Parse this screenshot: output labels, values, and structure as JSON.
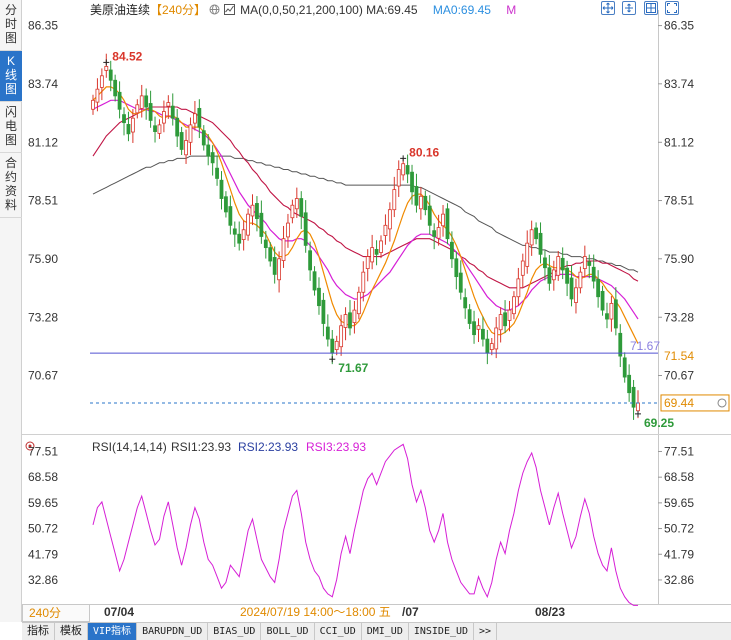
{
  "side_tabs": [
    {
      "label": "分时图",
      "active": false
    },
    {
      "label": "K线图",
      "active": true
    },
    {
      "label": "闪电图",
      "active": false
    },
    {
      "label": "合约资料",
      "active": false
    }
  ],
  "header": {
    "title": "美原油连续",
    "period": "【240分】",
    "ma_label": "MA(0,0,50,21,200,100)",
    "ma_value": "MA:69.45",
    "ma2_value": "MA0:69.45",
    "m_label": "M"
  },
  "rsi_header": {
    "label": "RSI(14,14,14)",
    "rsi1": "RSI1:23.93",
    "rsi2": "RSI2:23.93",
    "rsi3": "RSI3:23.93"
  },
  "footer": {
    "period": "240分",
    "date_left": "07/04",
    "date_cursor": "2024/07/19 14:00～18:00 五",
    "date_cursor_suffix": "/07",
    "date_right": "08/23"
  },
  "bottom_tabs": [
    "指标",
    "模板",
    "VIP指标",
    "BARUPDN_UD",
    "BIAS_UD",
    "BOLL_UD",
    "CCI_UD",
    "DMI_UD",
    "INSIDE_UD",
    ">>"
  ],
  "colors": {
    "up": "#d9362b",
    "down": "#2e9a3a",
    "ma_fast": "#f08a00",
    "ma_mid": "#d61fd6",
    "ma_slow": "#c01545",
    "ma_long": "#555555",
    "rsi": "#d61fd6",
    "support": "#5050d0"
  },
  "chart_data": {
    "type": "candlestick",
    "y_axis_ticks": [
      "86.35",
      "83.74",
      "81.12",
      "78.51",
      "75.90",
      "73.28",
      "70.67"
    ],
    "ylim": [
      68.9,
      86.6
    ],
    "annotations": {
      "high1": "84.52",
      "high2": "80.16",
      "low1": "71.67",
      "low2": "69.25"
    },
    "support_level": 71.67,
    "support_label": "71.67",
    "tags": [
      {
        "value": 71.54,
        "label": "71.54"
      },
      {
        "value": 69.44,
        "label": "69.44"
      }
    ],
    "close_level": 69.44,
    "close_points": [
      83.0,
      83.5,
      84.1,
      84.52,
      83.9,
      83.2,
      82.6,
      82.0,
      81.5,
      82.2,
      82.8,
      83.2,
      82.7,
      82.1,
      81.6,
      81.9,
      82.5,
      82.9,
      82.2,
      81.4,
      80.8,
      81.2,
      81.9,
      82.4,
      81.8,
      81.0,
      80.5,
      80.2,
      79.5,
      78.6,
      78.0,
      77.4,
      77.0,
      76.6,
      77.2,
      77.9,
      78.3,
      77.7,
      76.9,
      76.4,
      75.8,
      75.2,
      75.9,
      76.8,
      77.5,
      78.3,
      78.6,
      77.8,
      76.5,
      75.4,
      74.5,
      73.8,
      73.0,
      72.3,
      71.67,
      72.2,
      72.9,
      73.4,
      72.8,
      73.6,
      74.4,
      75.3,
      76.0,
      76.4,
      76.1,
      76.7,
      77.4,
      78.1,
      79.0,
      79.9,
      80.16,
      79.7,
      78.9,
      78.3,
      78.7,
      78.1,
      77.4,
      76.9,
      77.3,
      77.9,
      76.8,
      75.9,
      75.1,
      74.4,
      73.7,
      73.0,
      72.5,
      72.9,
      72.3,
      71.67,
      72.1,
      72.8,
      73.4,
      72.9,
      73.6,
      74.2,
      75.0,
      75.8,
      76.6,
      77.2,
      76.8,
      76.1,
      75.5,
      74.8,
      75.4,
      76.0,
      75.4,
      74.8,
      74.1,
      74.6,
      75.3,
      76.0,
      75.6,
      74.9,
      74.2,
      73.6,
      73.2,
      73.9,
      72.8,
      71.54,
      70.6,
      69.9,
      69.25,
      69.44
    ],
    "ma_fast": [
      83.0,
      83.2,
      83.4,
      83.6,
      83.6,
      83.5,
      83.3,
      83.0,
      82.6,
      82.4,
      82.4,
      82.5,
      82.6,
      82.6,
      82.5,
      82.3,
      82.2,
      82.3,
      82.3,
      82.2,
      82.0,
      81.8,
      81.8,
      81.8,
      81.8,
      81.6,
      81.4,
      81.1,
      80.7,
      80.2,
      79.6,
      79.0,
      78.4,
      77.9,
      77.6,
      77.5,
      77.5,
      77.4,
      77.2,
      77.0,
      76.6,
      76.2,
      76.0,
      76.0,
      76.1,
      76.4,
      76.8,
      77.1,
      77.2,
      77.0,
      76.6,
      76.0,
      75.3,
      74.6,
      73.9,
      73.4,
      73.1,
      73.0,
      72.9,
      72.9,
      73.1,
      73.5,
      74.0,
      74.5,
      74.9,
      75.3,
      75.7,
      76.2,
      76.7,
      77.3,
      77.9,
      78.4,
      78.7,
      78.8,
      78.8,
      78.6,
      78.3,
      77.9,
      77.6,
      77.4,
      77.2,
      76.9,
      76.5,
      76.0,
      75.4,
      74.8,
      74.2,
      73.7,
      73.3,
      72.9,
      72.6,
      72.5,
      72.5,
      72.6,
      72.8,
      73.0,
      73.4,
      73.9,
      74.4,
      75.0,
      75.4,
      75.6,
      75.7,
      75.6,
      75.5,
      75.5,
      75.5,
      75.4,
      75.3,
      75.1,
      75.0,
      75.1,
      75.2,
      75.2,
      75.0,
      74.8,
      74.5,
      74.3,
      74.0,
      73.7,
      73.3,
      72.9,
      72.5,
      72.1
    ],
    "ma_mid": [
      82.6,
      82.7,
      82.8,
      82.9,
      83.0,
      83.0,
      83.0,
      82.9,
      82.8,
      82.7,
      82.6,
      82.6,
      82.6,
      82.5,
      82.5,
      82.4,
      82.3,
      82.3,
      82.2,
      82.1,
      82.0,
      81.9,
      81.8,
      81.7,
      81.6,
      81.5,
      81.3,
      81.1,
      80.8,
      80.5,
      80.1,
      79.7,
      79.3,
      78.9,
      78.6,
      78.3,
      78.1,
      77.9,
      77.7,
      77.5,
      77.2,
      77.0,
      76.8,
      76.7,
      76.7,
      76.7,
      76.8,
      76.8,
      76.7,
      76.5,
      76.3,
      76.0,
      75.7,
      75.4,
      75.0,
      74.7,
      74.5,
      74.3,
      74.2,
      74.1,
      74.1,
      74.2,
      74.3,
      74.5,
      74.7,
      74.9,
      75.1,
      75.3,
      75.6,
      75.9,
      76.2,
      76.5,
      76.7,
      76.9,
      77.0,
      77.0,
      77.0,
      76.9,
      76.8,
      76.7,
      76.6,
      76.4,
      76.2,
      76.0,
      75.7,
      75.4,
      75.1,
      74.8,
      74.5,
      74.2,
      74.0,
      73.8,
      73.7,
      73.6,
      73.6,
      73.7,
      73.8,
      74.0,
      74.2,
      74.5,
      74.7,
      74.9,
      75.0,
      75.1,
      75.1,
      75.2,
      75.2,
      75.2,
      75.2,
      75.1,
      75.1,
      75.1,
      75.1,
      75.1,
      75.0,
      74.9,
      74.8,
      74.7,
      74.5,
      74.3,
      74.1,
      73.8,
      73.5,
      73.2
    ],
    "ma_slow": [
      80.5,
      80.8,
      81.1,
      81.4,
      81.6,
      81.8,
      82.0,
      82.1,
      82.2,
      82.3,
      82.4,
      82.5,
      82.6,
      82.7,
      82.7,
      82.7,
      82.7,
      82.7,
      82.7,
      82.7,
      82.6,
      82.6,
      82.5,
      82.4,
      82.3,
      82.2,
      82.1,
      82.0,
      81.8,
      81.6,
      81.4,
      81.2,
      80.9,
      80.7,
      80.4,
      80.2,
      79.9,
      79.7,
      79.4,
      79.2,
      78.9,
      78.7,
      78.5,
      78.3,
      78.2,
      78.0,
      77.9,
      77.8,
      77.7,
      77.6,
      77.5,
      77.3,
      77.2,
      77.0,
      76.9,
      76.7,
      76.6,
      76.4,
      76.3,
      76.2,
      76.1,
      76.0,
      76.0,
      76.0,
      76.0,
      76.0,
      76.1,
      76.2,
      76.3,
      76.4,
      76.5,
      76.6,
      76.7,
      76.8,
      76.8,
      76.8,
      76.8,
      76.7,
      76.6,
      76.5,
      76.4,
      76.3,
      76.2,
      76.0,
      75.9,
      75.7,
      75.6,
      75.4,
      75.3,
      75.1,
      75.0,
      74.9,
      74.8,
      74.7,
      74.6,
      74.6,
      74.6,
      74.6,
      74.7,
      74.8,
      74.9,
      75.0,
      75.1,
      75.2,
      75.3,
      75.4,
      75.5,
      75.6,
      75.6,
      75.7,
      75.7,
      75.8,
      75.8,
      75.8,
      75.8,
      75.7,
      75.7,
      75.6,
      75.5,
      75.4,
      75.3,
      75.2,
      75.0,
      74.9
    ],
    "ma_long": [
      78.8,
      78.9,
      79.0,
      79.1,
      79.2,
      79.3,
      79.4,
      79.5,
      79.6,
      79.7,
      79.8,
      79.9,
      80.0,
      80.0,
      80.1,
      80.2,
      80.2,
      80.3,
      80.3,
      80.4,
      80.4,
      80.4,
      80.5,
      80.5,
      80.5,
      80.5,
      80.5,
      80.5,
      80.5,
      80.5,
      80.5,
      80.5,
      80.4,
      80.4,
      80.4,
      80.3,
      80.3,
      80.2,
      80.2,
      80.1,
      80.1,
      80.0,
      80.0,
      79.9,
      79.9,
      79.8,
      79.8,
      79.7,
      79.7,
      79.6,
      79.6,
      79.5,
      79.5,
      79.4,
      79.4,
      79.3,
      79.3,
      79.2,
      79.2,
      79.2,
      79.2,
      79.2,
      79.2,
      79.2,
      79.2,
      79.2,
      79.2,
      79.2,
      79.2,
      79.2,
      79.2,
      79.2,
      79.2,
      79.1,
      79.1,
      79.0,
      78.9,
      78.8,
      78.7,
      78.6,
      78.5,
      78.4,
      78.3,
      78.2,
      78.0,
      77.9,
      77.8,
      77.6,
      77.5,
      77.4,
      77.3,
      77.1,
      77.0,
      76.9,
      76.8,
      76.7,
      76.6,
      76.5,
      76.5,
      76.4,
      76.4,
      76.3,
      76.3,
      76.2,
      76.2,
      76.2,
      76.1,
      76.1,
      76.0,
      76.0,
      76.0,
      75.9,
      75.9,
      75.9,
      75.8,
      75.8,
      75.7,
      75.7,
      75.6,
      75.6,
      75.5,
      75.4,
      75.4,
      75.3
    ],
    "rsi_ticks": [
      "77.51",
      "68.58",
      "59.65",
      "50.72",
      "41.79",
      "32.86"
    ],
    "rsi_ylim": [
      24.5,
      81.5
    ],
    "rsi_values": [
      52,
      58,
      60,
      54,
      48,
      42,
      36,
      40,
      46,
      52,
      58,
      62,
      56,
      50,
      45,
      47,
      55,
      60,
      52,
      44,
      38,
      44,
      52,
      58,
      54,
      46,
      40,
      38,
      34,
      30,
      32,
      38,
      36,
      34,
      42,
      50,
      54,
      47,
      40,
      37,
      34,
      32,
      40,
      50,
      56,
      62,
      64,
      56,
      46,
      40,
      36,
      34,
      30,
      28,
      27,
      33,
      42,
      48,
      42,
      50,
      57,
      64,
      68,
      70,
      66,
      70,
      74,
      76,
      78,
      79,
      80,
      75,
      66,
      60,
      64,
      58,
      50,
      46,
      50,
      56,
      46,
      40,
      36,
      32,
      30,
      28,
      28,
      34,
      30,
      27,
      32,
      40,
      46,
      42,
      50,
      56,
      64,
      70,
      74,
      77,
      72,
      64,
      58,
      52,
      58,
      63,
      56,
      50,
      44,
      48,
      55,
      61,
      56,
      48,
      42,
      38,
      36,
      44,
      36,
      30,
      27,
      25,
      24,
      24
    ]
  }
}
